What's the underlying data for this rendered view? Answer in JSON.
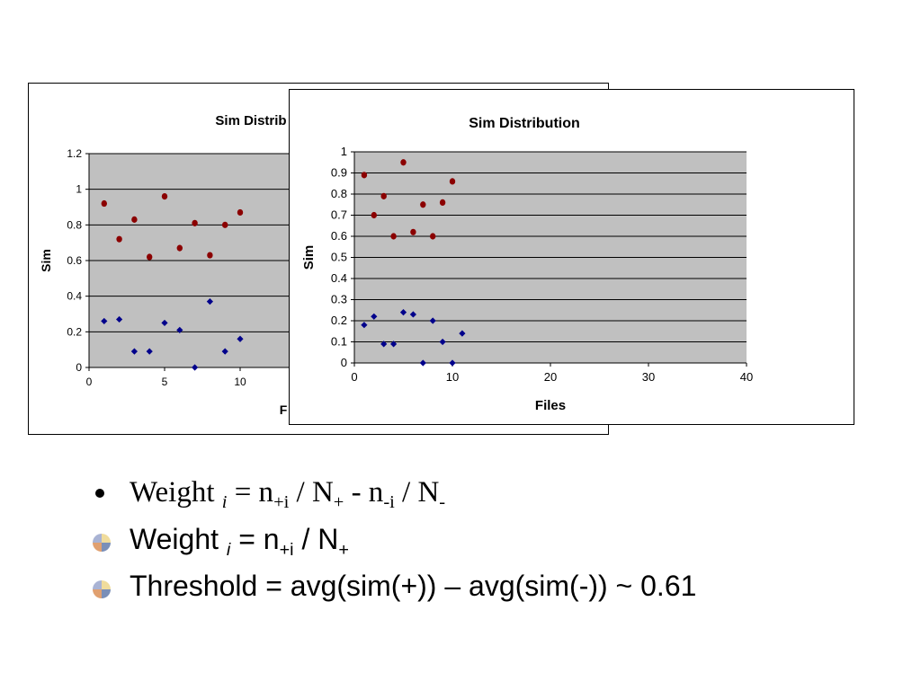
{
  "chart_data": [
    {
      "type": "scatter",
      "title": "Sim Distrib",
      "xlabel": "F",
      "ylabel": "Sim",
      "xlim": [
        0,
        25
      ],
      "ylim": [
        0,
        1.2
      ],
      "x_ticks": [
        "0",
        "5",
        "10",
        "15"
      ],
      "y_ticks": [
        "0",
        "0.2",
        "0.4",
        "0.6",
        "0.8",
        "1",
        "1.2"
      ],
      "grid": true,
      "series": [
        {
          "color": "#8b0000",
          "marker": "circle",
          "points": [
            [
              1,
              0.92
            ],
            [
              2,
              0.72
            ],
            [
              3,
              0.83
            ],
            [
              4,
              0.62
            ],
            [
              5,
              0.96
            ],
            [
              6,
              0.67
            ],
            [
              7,
              0.81
            ],
            [
              8,
              0.63
            ],
            [
              9,
              0.8
            ],
            [
              10,
              0.87
            ]
          ]
        },
        {
          "color": "#00008b",
          "marker": "diamond",
          "points": [
            [
              1,
              0.26
            ],
            [
              2,
              0.27
            ],
            [
              3,
              0.09
            ],
            [
              4,
              0.09
            ],
            [
              5,
              0.25
            ],
            [
              6,
              0.21
            ],
            [
              7,
              0.0
            ],
            [
              8,
              0.37
            ],
            [
              9,
              0.09
            ],
            [
              10,
              0.16
            ]
          ]
        }
      ]
    },
    {
      "type": "scatter",
      "title": "Sim Distribution",
      "xlabel": "Files",
      "ylabel": "Sim",
      "xlim": [
        0,
        40
      ],
      "ylim": [
        0,
        1
      ],
      "x_ticks": [
        "0",
        "10",
        "20",
        "30",
        "40"
      ],
      "y_ticks": [
        "0",
        "0.1",
        "0.2",
        "0.3",
        "0.4",
        "0.5",
        "0.6",
        "0.7",
        "0.8",
        "0.9",
        "1"
      ],
      "grid": true,
      "series": [
        {
          "color": "#8b0000",
          "marker": "circle",
          "points": [
            [
              1,
              0.89
            ],
            [
              2,
              0.7
            ],
            [
              3,
              0.79
            ],
            [
              4,
              0.6
            ],
            [
              5,
              0.95
            ],
            [
              6,
              0.62
            ],
            [
              7,
              0.75
            ],
            [
              8,
              0.6
            ],
            [
              9,
              0.76
            ],
            [
              10,
              0.86
            ]
          ]
        },
        {
          "color": "#00008b",
          "marker": "diamond",
          "points": [
            [
              1,
              0.18
            ],
            [
              2,
              0.22
            ],
            [
              3,
              0.09
            ],
            [
              4,
              0.09
            ],
            [
              5,
              0.24
            ],
            [
              6,
              0.23
            ],
            [
              7,
              0.0
            ],
            [
              8,
              0.2
            ],
            [
              9,
              0.1
            ],
            [
              10,
              0.0
            ],
            [
              11,
              0.14
            ]
          ]
        }
      ]
    }
  ],
  "bullets": [
    {
      "icon": "black-dot",
      "parts": [
        "Weight ",
        "i",
        " = n",
        "+i",
        " / N",
        "+",
        " - n",
        "-i",
        " / N",
        "-"
      ]
    },
    {
      "icon": "quad-color",
      "parts": [
        "Weight ",
        "i",
        " = n",
        "+i",
        " / N",
        "+"
      ]
    },
    {
      "icon": "quad-color",
      "parts": [
        "Threshold = avg(sim(+)) – avg(sim(-)) ~ 0.61"
      ]
    }
  ],
  "colors": {
    "plot_bg": "#c0c0c0",
    "positive": "#8b0000",
    "negative": "#00008b",
    "quad": [
      "#a9b3d4",
      "#f0dc9c",
      "#e0a070",
      "#7a8fb8"
    ]
  }
}
